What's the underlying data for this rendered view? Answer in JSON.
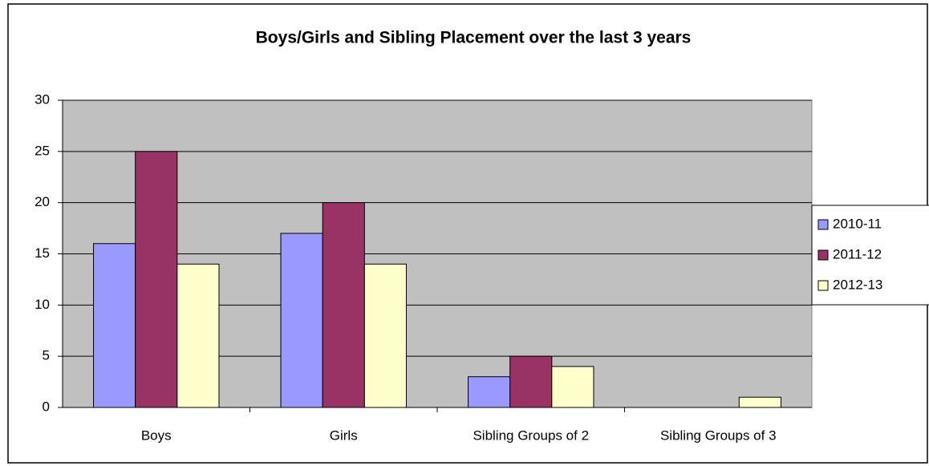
{
  "chart_data": {
    "type": "bar",
    "title": "Boys/Girls and Sibling Placement over the last 3 years",
    "categories": [
      "Boys",
      "Girls",
      "Sibling Groups of 2",
      "Sibling Groups of 3"
    ],
    "series": [
      {
        "name": "2010-11",
        "color": "#9999ff",
        "values": [
          16,
          17,
          3,
          0
        ]
      },
      {
        "name": "2011-12",
        "color": "#993366",
        "values": [
          25,
          20,
          5,
          0
        ]
      },
      {
        "name": "2012-13",
        "color": "#ffffcc",
        "values": [
          14,
          14,
          4,
          1
        ]
      }
    ],
    "ylim": [
      0,
      30
    ],
    "yticks": [
      0,
      5,
      10,
      15,
      20,
      25,
      30
    ],
    "grid": true,
    "legend": "right"
  }
}
